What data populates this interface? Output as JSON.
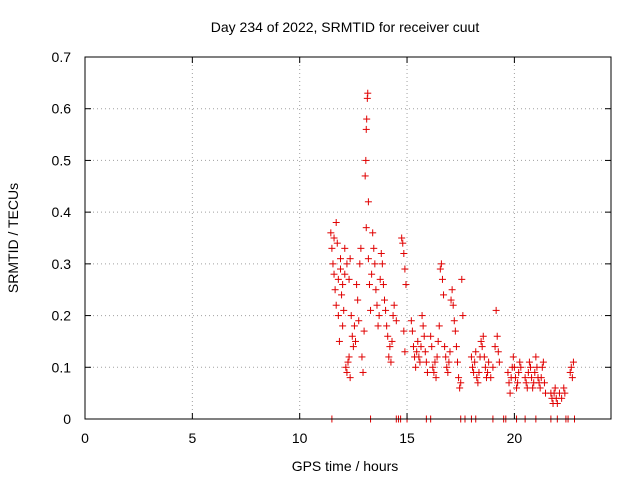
{
  "chart_data": {
    "type": "scatter",
    "title": "Day 234 of 2022, SRMTID for receiver cuut",
    "xlabel": "GPS time / hours",
    "ylabel": "SRMTID / TECUs",
    "xlim": [
      0,
      24.5
    ],
    "ylim": [
      0,
      0.7
    ],
    "x_ticks": [
      0,
      5,
      10,
      15,
      20
    ],
    "x_tick_labels": [
      "0",
      "5",
      "10",
      "15",
      "20"
    ],
    "y_ticks": [
      0,
      0.1,
      0.2,
      0.3,
      0.4,
      0.5,
      0.6,
      0.7
    ],
    "y_tick_labels": [
      "0",
      "0.1",
      "0.2",
      "0.3",
      "0.4",
      "0.5",
      "0.6",
      "0.7"
    ],
    "grid": true,
    "marker": "plus",
    "marker_color": "#e00000",
    "series": [
      {
        "name": "SRMTID",
        "points": [
          [
            11.45,
            0.36
          ],
          [
            11.5,
            0.33
          ],
          [
            11.55,
            0.3
          ],
          [
            11.6,
            0.35
          ],
          [
            11.6,
            0.28
          ],
          [
            11.65,
            0.25
          ],
          [
            11.7,
            0.38
          ],
          [
            11.7,
            0.22
          ],
          [
            11.75,
            0.34
          ],
          [
            11.8,
            0.2
          ],
          [
            11.8,
            0.27
          ],
          [
            11.85,
            0.15
          ],
          [
            11.9,
            0.29
          ],
          [
            11.9,
            0.31
          ],
          [
            11.95,
            0.24
          ],
          [
            12.0,
            0.18
          ],
          [
            12.0,
            0.26
          ],
          [
            12.05,
            0.21
          ],
          [
            12.1,
            0.28
          ],
          [
            12.15,
            0.1
          ],
          [
            12.2,
            0.09
          ],
          [
            12.25,
            0.11
          ],
          [
            12.3,
            0.12
          ],
          [
            12.35,
            0.08
          ],
          [
            12.1,
            0.33
          ],
          [
            12.2,
            0.3
          ],
          [
            12.3,
            0.27
          ],
          [
            12.35,
            0.31
          ],
          [
            12.4,
            0.2
          ],
          [
            12.45,
            0.16
          ],
          [
            12.5,
            0.14
          ],
          [
            12.55,
            0.18
          ],
          [
            12.6,
            0.15
          ],
          [
            12.65,
            0.26
          ],
          [
            12.7,
            0.23
          ],
          [
            12.75,
            0.19
          ],
          [
            12.8,
            0.3
          ],
          [
            12.85,
            0.33
          ],
          [
            12.9,
            0.12
          ],
          [
            12.95,
            0.09
          ],
          [
            13.0,
            0.17
          ],
          [
            13.05,
            0.47
          ],
          [
            13.08,
            0.5
          ],
          [
            13.1,
            0.56
          ],
          [
            13.12,
            0.58
          ],
          [
            13.15,
            0.62
          ],
          [
            13.17,
            0.63
          ],
          [
            13.2,
            0.42
          ],
          [
            13.1,
            0.37
          ],
          [
            13.2,
            0.31
          ],
          [
            13.25,
            0.26
          ],
          [
            13.3,
            0.21
          ],
          [
            13.35,
            0.28
          ],
          [
            13.4,
            0.36
          ],
          [
            13.45,
            0.33
          ],
          [
            13.5,
            0.3
          ],
          [
            13.55,
            0.25
          ],
          [
            13.6,
            0.22
          ],
          [
            13.65,
            0.18
          ],
          [
            13.7,
            0.2
          ],
          [
            13.75,
            0.27
          ],
          [
            13.8,
            0.32
          ],
          [
            13.85,
            0.3
          ],
          [
            13.9,
            0.26
          ],
          [
            13.95,
            0.23
          ],
          [
            14.0,
            0.21
          ],
          [
            14.05,
            0.18
          ],
          [
            14.1,
            0.16
          ],
          [
            14.15,
            0.12
          ],
          [
            14.2,
            0.14
          ],
          [
            14.25,
            0.11
          ],
          [
            14.3,
            0.15
          ],
          [
            14.35,
            0.2
          ],
          [
            14.4,
            0.22
          ],
          [
            14.5,
            0.19
          ],
          [
            14.75,
            0.35
          ],
          [
            14.8,
            0.34
          ],
          [
            14.85,
            0.32
          ],
          [
            14.9,
            0.29
          ],
          [
            14.95,
            0.26
          ],
          [
            14.85,
            0.17
          ],
          [
            14.9,
            0.13
          ],
          [
            15.2,
            0.19
          ],
          [
            15.25,
            0.17
          ],
          [
            15.3,
            0.14
          ],
          [
            15.35,
            0.12
          ],
          [
            15.4,
            0.1
          ],
          [
            15.45,
            0.13
          ],
          [
            15.5,
            0.15
          ],
          [
            15.55,
            0.12
          ],
          [
            15.6,
            0.11
          ],
          [
            15.65,
            0.14
          ],
          [
            15.7,
            0.2
          ],
          [
            15.75,
            0.18
          ],
          [
            15.8,
            0.16
          ],
          [
            15.85,
            0.13
          ],
          [
            15.9,
            0.11
          ],
          [
            15.95,
            0.09
          ],
          [
            16.1,
            0.16
          ],
          [
            16.15,
            0.14
          ],
          [
            16.2,
            0.1
          ],
          [
            16.25,
            0.09
          ],
          [
            16.3,
            0.11
          ],
          [
            16.35,
            0.08
          ],
          [
            16.4,
            0.12
          ],
          [
            16.45,
            0.15
          ],
          [
            16.5,
            0.18
          ],
          [
            16.55,
            0.29
          ],
          [
            16.6,
            0.3
          ],
          [
            16.65,
            0.27
          ],
          [
            16.7,
            0.24
          ],
          [
            16.75,
            0.14
          ],
          [
            16.8,
            0.12
          ],
          [
            16.85,
            0.1
          ],
          [
            16.9,
            0.09
          ],
          [
            16.95,
            0.11
          ],
          [
            17.0,
            0.13
          ],
          [
            17.05,
            0.23
          ],
          [
            17.1,
            0.25
          ],
          [
            17.15,
            0.22
          ],
          [
            17.2,
            0.19
          ],
          [
            17.25,
            0.17
          ],
          [
            17.3,
            0.14
          ],
          [
            17.35,
            0.11
          ],
          [
            17.4,
            0.08
          ],
          [
            17.45,
            0.06
          ],
          [
            17.5,
            0.07
          ],
          [
            17.55,
            0.27
          ],
          [
            17.6,
            0.2
          ],
          [
            18.0,
            0.12
          ],
          [
            18.05,
            0.1
          ],
          [
            18.1,
            0.09
          ],
          [
            18.15,
            0.11
          ],
          [
            18.2,
            0.13
          ],
          [
            18.25,
            0.08
          ],
          [
            18.3,
            0.07
          ],
          [
            18.35,
            0.09
          ],
          [
            18.4,
            0.12
          ],
          [
            18.45,
            0.15
          ],
          [
            18.5,
            0.14
          ],
          [
            18.55,
            0.16
          ],
          [
            18.6,
            0.12
          ],
          [
            18.65,
            0.1
          ],
          [
            18.7,
            0.08
          ],
          [
            18.75,
            0.09
          ],
          [
            18.8,
            0.11
          ],
          [
            18.9,
            0.08
          ],
          [
            19.0,
            0.1
          ],
          [
            19.1,
            0.14
          ],
          [
            19.15,
            0.21
          ],
          [
            19.2,
            0.16
          ],
          [
            19.25,
            0.13
          ],
          [
            19.3,
            0.11
          ],
          [
            19.7,
            0.09
          ],
          [
            19.75,
            0.07
          ],
          [
            19.8,
            0.05
          ],
          [
            19.85,
            0.08
          ],
          [
            19.9,
            0.1
          ],
          [
            19.95,
            0.12
          ],
          [
            20.0,
            0.1
          ],
          [
            20.05,
            0.08
          ],
          [
            20.1,
            0.06
          ],
          [
            20.15,
            0.07
          ],
          [
            20.2,
            0.09
          ],
          [
            20.25,
            0.11
          ],
          [
            20.3,
            0.1
          ],
          [
            20.5,
            0.08
          ],
          [
            20.55,
            0.07
          ],
          [
            20.6,
            0.06
          ],
          [
            20.65,
            0.09
          ],
          [
            20.7,
            0.11
          ],
          [
            20.75,
            0.1
          ],
          [
            20.8,
            0.08
          ],
          [
            20.85,
            0.06
          ],
          [
            20.9,
            0.07
          ],
          [
            20.95,
            0.09
          ],
          [
            21.0,
            0.12
          ],
          [
            21.05,
            0.1
          ],
          [
            21.1,
            0.08
          ],
          [
            21.15,
            0.07
          ],
          [
            21.2,
            0.06
          ],
          [
            21.25,
            0.08
          ],
          [
            21.3,
            0.1
          ],
          [
            21.35,
            0.11
          ],
          [
            21.4,
            0.07
          ],
          [
            21.45,
            0.05
          ],
          [
            21.7,
            0.05
          ],
          [
            21.75,
            0.04
          ],
          [
            21.8,
            0.03
          ],
          [
            21.85,
            0.05
          ],
          [
            21.9,
            0.06
          ],
          [
            21.95,
            0.04
          ],
          [
            22.0,
            0.03
          ],
          [
            22.1,
            0.05
          ],
          [
            22.2,
            0.04
          ],
          [
            22.3,
            0.06
          ],
          [
            22.35,
            0.05
          ],
          [
            22.6,
            0.09
          ],
          [
            22.65,
            0.1
          ],
          [
            22.7,
            0.08
          ],
          [
            22.75,
            0.11
          ],
          [
            11.5,
            0.0
          ],
          [
            13.3,
            0.0
          ],
          [
            14.5,
            0.0
          ],
          [
            14.6,
            0.0
          ],
          [
            14.7,
            0.0
          ],
          [
            15.0,
            0.0
          ],
          [
            15.9,
            0.0
          ],
          [
            16.1,
            0.0
          ],
          [
            17.5,
            0.0
          ],
          [
            17.7,
            0.0
          ],
          [
            18.0,
            0.0
          ],
          [
            18.2,
            0.0
          ],
          [
            19.0,
            0.0
          ],
          [
            19.5,
            0.0
          ],
          [
            19.6,
            0.0
          ],
          [
            20.1,
            0.0
          ],
          [
            20.5,
            0.0
          ],
          [
            21.0,
            0.0
          ],
          [
            21.7,
            0.0
          ],
          [
            22.0,
            0.0
          ],
          [
            22.4,
            0.0
          ],
          [
            22.5,
            0.0
          ],
          [
            22.8,
            0.0
          ]
        ]
      }
    ]
  }
}
